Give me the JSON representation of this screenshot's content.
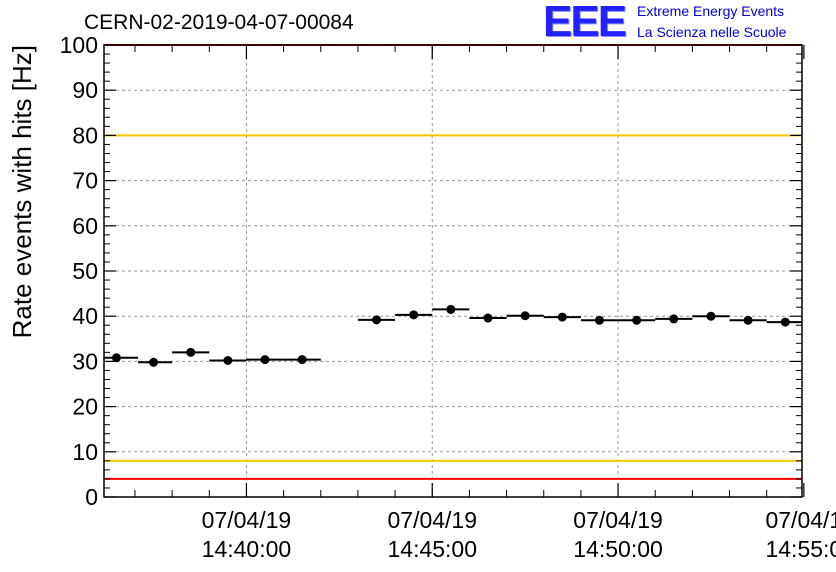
{
  "header": {
    "title": "CERN-02-2019-04-07-00084",
    "logo_mark": "EEE",
    "logo_line1": "Extreme Energy Events",
    "logo_line2": "La Scienza nelle Scuole"
  },
  "chart_data": {
    "type": "scatter",
    "title": "CERN-02-2019-04-07-00084",
    "xlabel": "",
    "ylabel": "Rate events with hits [Hz]",
    "ylim": [
      0,
      100
    ],
    "y_ticks": [
      0,
      10,
      20,
      30,
      40,
      50,
      60,
      70,
      80,
      90,
      100
    ],
    "xlim": [
      "2019-04-07 14:36:10",
      "2019-04-07 14:54:57"
    ],
    "x_ticks": [
      {
        "time": "2019-04-07 14:40:00",
        "date": "07/04/19",
        "clock": "14:40:00"
      },
      {
        "time": "2019-04-07 14:45:00",
        "date": "07/04/19",
        "clock": "14:45:00"
      },
      {
        "time": "2019-04-07 14:50:00",
        "date": "07/04/19",
        "clock": "14:50:00"
      },
      {
        "time": "2019-04-07 14:55:00",
        "date": "07/04/1",
        "clock": "14:55:0"
      }
    ],
    "grid": true,
    "series": [
      {
        "marker": "circle",
        "points": [
          {
            "x": "2019-04-07 14:36:30",
            "y": 30.8,
            "x_start": "2019-04-07 14:36:10",
            "x_end": "2019-04-07 14:37:05"
          },
          {
            "x": "2019-04-07 14:37:30",
            "y": 29.8,
            "x_start": "2019-04-07 14:37:05",
            "x_end": "2019-04-07 14:38:00"
          },
          {
            "x": "2019-04-07 14:38:30",
            "y": 32.0,
            "x_start": "2019-04-07 14:38:00",
            "x_end": "2019-04-07 14:39:00"
          },
          {
            "x": "2019-04-07 14:39:30",
            "y": 30.2,
            "x_start": "2019-04-07 14:39:00",
            "x_end": "2019-04-07 14:40:00"
          },
          {
            "x": "2019-04-07 14:40:30",
            "y": 30.4,
            "x_start": "2019-04-07 14:40:00",
            "x_end": "2019-04-07 14:41:00"
          },
          {
            "x": "2019-04-07 14:41:30",
            "y": 30.4,
            "x_start": "2019-04-07 14:41:00",
            "x_end": "2019-04-07 14:42:00"
          },
          {
            "x": "2019-04-07 14:43:30",
            "y": 39.2,
            "x_start": "2019-04-07 14:43:00",
            "x_end": "2019-04-07 14:44:00"
          },
          {
            "x": "2019-04-07 14:44:30",
            "y": 40.3,
            "x_start": "2019-04-07 14:44:00",
            "x_end": "2019-04-07 14:45:00"
          },
          {
            "x": "2019-04-07 14:45:30",
            "y": 41.5,
            "x_start": "2019-04-07 14:45:00",
            "x_end": "2019-04-07 14:46:00"
          },
          {
            "x": "2019-04-07 14:46:30",
            "y": 39.6,
            "x_start": "2019-04-07 14:46:00",
            "x_end": "2019-04-07 14:47:00"
          },
          {
            "x": "2019-04-07 14:47:30",
            "y": 40.1,
            "x_start": "2019-04-07 14:47:00",
            "x_end": "2019-04-07 14:48:00"
          },
          {
            "x": "2019-04-07 14:48:30",
            "y": 39.8,
            "x_start": "2019-04-07 14:48:00",
            "x_end": "2019-04-07 14:49:00"
          },
          {
            "x": "2019-04-07 14:49:30",
            "y": 39.1,
            "x_start": "2019-04-07 14:49:00",
            "x_end": "2019-04-07 14:50:00"
          },
          {
            "x": "2019-04-07 14:50:30",
            "y": 39.1,
            "x_start": "2019-04-07 14:50:00",
            "x_end": "2019-04-07 14:51:00"
          },
          {
            "x": "2019-04-07 14:51:30",
            "y": 39.4,
            "x_start": "2019-04-07 14:51:00",
            "x_end": "2019-04-07 14:52:00"
          },
          {
            "x": "2019-04-07 14:52:30",
            "y": 40.0,
            "x_start": "2019-04-07 14:52:00",
            "x_end": "2019-04-07 14:53:00"
          },
          {
            "x": "2019-04-07 14:53:30",
            "y": 39.1,
            "x_start": "2019-04-07 14:53:00",
            "x_end": "2019-04-07 14:54:00"
          },
          {
            "x": "2019-04-07 14:54:30",
            "y": 38.7,
            "x_start": "2019-04-07 14:54:00",
            "x_end": "2019-04-07 14:54:57"
          }
        ]
      }
    ],
    "reference_lines": [
      {
        "y": 100,
        "color": "#ff0000"
      },
      {
        "y": 80,
        "color": "#f0c800"
      },
      {
        "y": 8,
        "color": "#f0c800"
      },
      {
        "y": 4,
        "color": "#ff0000"
      }
    ],
    "colors": {
      "marker": "#000000",
      "grid": "#999999",
      "logo": "#1c1cff"
    }
  }
}
